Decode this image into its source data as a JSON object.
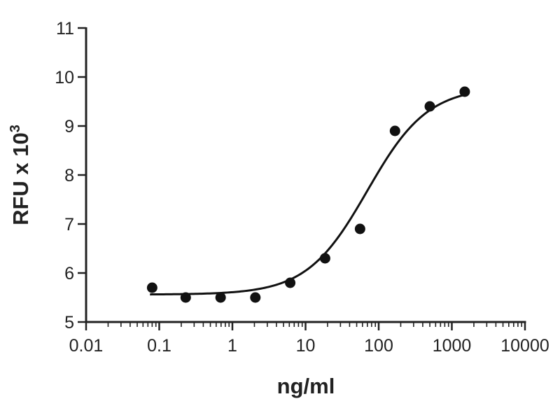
{
  "chart_data": {
    "type": "scatter",
    "title": "",
    "xlabel": "ng/ml",
    "ylabel": "RFU x 10",
    "ylabel_superscript": "3",
    "xscale": "log",
    "xlim": [
      0.01,
      10000
    ],
    "ylim": [
      5,
      11
    ],
    "x_tick_labels": [
      "0.01",
      "0.1",
      "1",
      "10",
      "100",
      "1000",
      "10000"
    ],
    "y_tick_labels": [
      "5",
      "6",
      "7",
      "8",
      "9",
      "10",
      "11"
    ],
    "grid": false,
    "legend": "none",
    "series": [
      {
        "x": [
          0.08,
          0.23,
          0.69,
          2.06,
          6.17,
          18.5,
          55.6,
          167,
          500,
          1500
        ],
        "y": [
          5.7,
          5.5,
          5.5,
          5.5,
          5.8,
          6.3,
          6.9,
          8.9,
          9.4,
          9.7
        ]
      }
    ],
    "fit_curve": {
      "type": "4-parameter logistic",
      "bottom": 5.56,
      "top": 9.8,
      "ec50": 70,
      "hill": 1.05
    },
    "colors": {
      "points": "#111111",
      "curve": "#111111",
      "axes": "#222222",
      "background": "#ffffff"
    }
  }
}
